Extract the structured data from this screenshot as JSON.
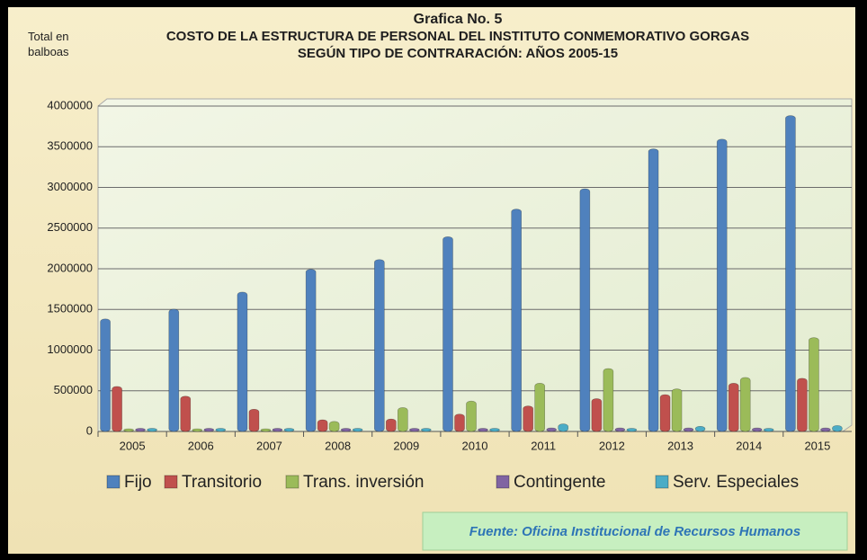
{
  "chart_data": {
    "type": "bar",
    "title": "Grafica No. 5",
    "subtitle": [
      "COSTO DE LA ESTRUCTURA DE PERSONAL DEL INSTITUTO CONMEMORATIVO GORGAS",
      "SEGÚN TIPO DE CONTRARACIÓN: AÑOS 2005-15"
    ],
    "ylabel": "Total en balboas",
    "categories": [
      "2005",
      "2006",
      "2007",
      "2008",
      "2009",
      "2010",
      "2011",
      "2012",
      "2013",
      "2014",
      "2015"
    ],
    "series": [
      {
        "name": "Fijo",
        "color": "#4f81bd",
        "values": [
          1350000,
          1470000,
          1680000,
          1960000,
          2080000,
          2360000,
          2700000,
          2950000,
          3440000,
          3560000,
          3850000
        ]
      },
      {
        "name": "Transitorio",
        "color": "#c0504d",
        "values": [
          520000,
          400000,
          240000,
          110000,
          120000,
          180000,
          280000,
          370000,
          420000,
          560000,
          620000
        ]
      },
      {
        "name": "Trans. inversión",
        "color": "#9bbb59",
        "values": [
          0,
          0,
          0,
          90000,
          260000,
          340000,
          560000,
          740000,
          490000,
          630000,
          1120000
        ]
      },
      {
        "name": "Contingente",
        "color": "#8064a2",
        "values": [
          5000,
          5000,
          5000,
          5000,
          5000,
          5000,
          10000,
          10000,
          10000,
          10000,
          10000
        ]
      },
      {
        "name": "Serv. Especiales",
        "color": "#4bacc6",
        "values": [
          5000,
          5000,
          5000,
          5000,
          5000,
          5000,
          60000,
          5000,
          30000,
          5000,
          40000
        ]
      }
    ],
    "ylim": [
      0,
      4000000
    ],
    "yticks": [
      0,
      500000,
      1000000,
      1500000,
      2000000,
      2500000,
      3000000,
      3500000,
      4000000
    ],
    "grid": true,
    "legend": "bottom",
    "source": "Fuente: Oficina Institucional de Recursos Humanos"
  }
}
